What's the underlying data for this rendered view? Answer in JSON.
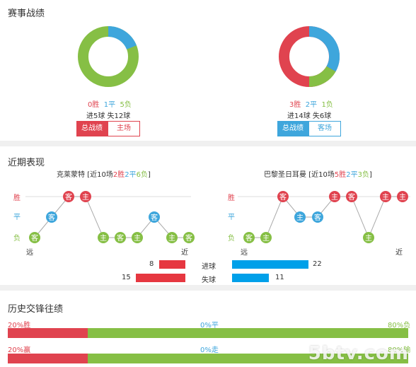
{
  "stats": {
    "title": "赛事战绩",
    "left": {
      "win": "0胜",
      "draw": "1平",
      "lose": "5负",
      "goals": "进5球  失12球",
      "btn_overall": "总战绩",
      "btn_venue": "主场"
    },
    "right": {
      "win": "3胜",
      "draw": "2平",
      "lose": "1负",
      "goals": "进14球  失6球",
      "btn_overall": "总战绩",
      "btn_venue": "客场"
    }
  },
  "recent": {
    "title": "近期表现",
    "left": {
      "team": "克莱蒙特",
      "summary": {
        "prefix": "[近10场",
        "win": "2胜",
        "draw": "2平",
        "lose": "6负",
        "suffix": "]"
      },
      "results": [
        "客",
        "客",
        "客",
        "主",
        "主",
        "客",
        "主",
        "客",
        "主",
        "客"
      ],
      "far": "远",
      "near": "近"
    },
    "right": {
      "team": "巴黎圣日耳曼",
      "summary": {
        "prefix": "[近10场",
        "win": "5胜",
        "draw": "2平",
        "lose": "3负",
        "suffix": "]"
      },
      "results": [
        "客",
        "主",
        "客",
        "主",
        "客",
        "主",
        "客",
        "主",
        "主",
        "主"
      ],
      "far": "远",
      "near": "近"
    },
    "axis": {
      "win": "胜",
      "draw": "平",
      "lose": "负"
    },
    "goals": {
      "scored_label": "进球",
      "conceded_label": "失球",
      "left_scored": "8",
      "left_conceded": "15",
      "right_scored": "22",
      "right_conceded": "11",
      "left_scored_value": 8,
      "left_conceded_value": 15,
      "right_scored_value": 22,
      "right_conceded_value": 11
    }
  },
  "history": {
    "title": "历史交锋往绩",
    "row1": {
      "left": "20%胜",
      "mid": "0%平",
      "right": "80%负",
      "red_frac": 0.2,
      "green_frac": 0.8
    },
    "row2": {
      "left": "20%赢",
      "mid": "0%走",
      "right": "80%输",
      "red_frac": 0.2,
      "green_frac": 0.8
    }
  },
  "watermark": "5btv.com",
  "colors": {
    "red": "#e0434f",
    "blue": "#3ea6dc",
    "green": "#86bf45",
    "goal_red": "#e63740",
    "goal_blue": "#00a0e9"
  }
}
